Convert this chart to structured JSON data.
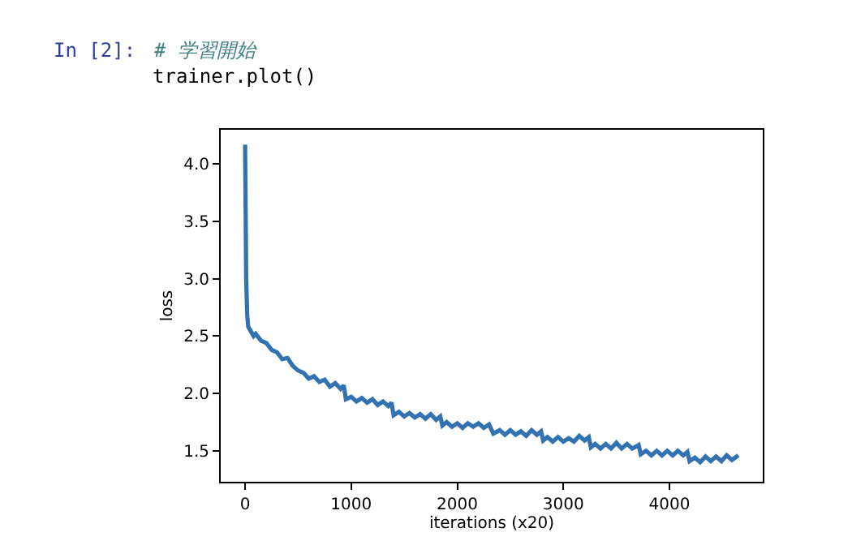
{
  "chart_data": {
    "type": "line",
    "xlabel": "iterations (x20)",
    "ylabel": "loss",
    "annotations": [
      "In [2]:",
      "# 学習開始",
      "trainer.plot()"
    ],
    "xlim": [
      -230,
      4880
    ],
    "ylim": [
      1.23,
      4.3
    ],
    "xticks": [
      0,
      1000,
      2000,
      3000,
      4000
    ],
    "yticks": [
      1.5,
      {
        "value": 2,
        "label": "2.0"
      },
      2.5,
      {
        "value": 3,
        "label": "3.0"
      },
      3.5,
      {
        "value": 4,
        "label": "4.0"
      }
    ],
    "series": [
      {
        "color": "#3372b0",
        "x": [
          0,
          5,
          10,
          20,
          30,
          50,
          80,
          100,
          150,
          200,
          250,
          300,
          350,
          400,
          450,
          500,
          550,
          600,
          650,
          700,
          750,
          800,
          850,
          900,
          930,
          950,
          1000,
          1050,
          1100,
          1150,
          1200,
          1250,
          1300,
          1350,
          1380,
          1400,
          1450,
          1500,
          1550,
          1600,
          1650,
          1700,
          1750,
          1800,
          1840,
          1860,
          1900,
          1950,
          2000,
          2050,
          2100,
          2150,
          2200,
          2250,
          2300,
          2340,
          2400,
          2450,
          2500,
          2550,
          2600,
          2650,
          2700,
          2750,
          2790,
          2810,
          2850,
          2900,
          2950,
          3000,
          3050,
          3100,
          3150,
          3200,
          3240,
          3260,
          3300,
          3350,
          3400,
          3450,
          3500,
          3550,
          3600,
          3650,
          3710,
          3730,
          3780,
          3830,
          3880,
          3930,
          3980,
          4030,
          4080,
          4130,
          4170,
          4190,
          4240,
          4290,
          4340,
          4390,
          4440,
          4490,
          4540,
          4590,
          4650
        ],
        "values": [
          4.17,
          3.6,
          3.0,
          2.68,
          2.58,
          2.55,
          2.5,
          2.52,
          2.46,
          2.44,
          2.38,
          2.36,
          2.3,
          2.31,
          2.24,
          2.2,
          2.18,
          2.13,
          2.15,
          2.1,
          2.12,
          2.06,
          2.09,
          2.04,
          2.07,
          1.95,
          1.97,
          1.93,
          1.96,
          1.92,
          1.95,
          1.9,
          1.93,
          1.89,
          1.92,
          1.81,
          1.84,
          1.8,
          1.83,
          1.79,
          1.82,
          1.78,
          1.82,
          1.77,
          1.8,
          1.72,
          1.75,
          1.71,
          1.74,
          1.7,
          1.74,
          1.71,
          1.74,
          1.7,
          1.73,
          1.65,
          1.68,
          1.64,
          1.68,
          1.64,
          1.67,
          1.63,
          1.68,
          1.64,
          1.67,
          1.59,
          1.62,
          1.58,
          1.62,
          1.58,
          1.61,
          1.58,
          1.63,
          1.59,
          1.62,
          1.53,
          1.56,
          1.52,
          1.56,
          1.52,
          1.57,
          1.52,
          1.56,
          1.52,
          1.55,
          1.47,
          1.5,
          1.46,
          1.5,
          1.46,
          1.5,
          1.46,
          1.5,
          1.46,
          1.49,
          1.41,
          1.44,
          1.4,
          1.45,
          1.41,
          1.45,
          1.41,
          1.46,
          1.42,
          1.46
        ]
      }
    ]
  }
}
